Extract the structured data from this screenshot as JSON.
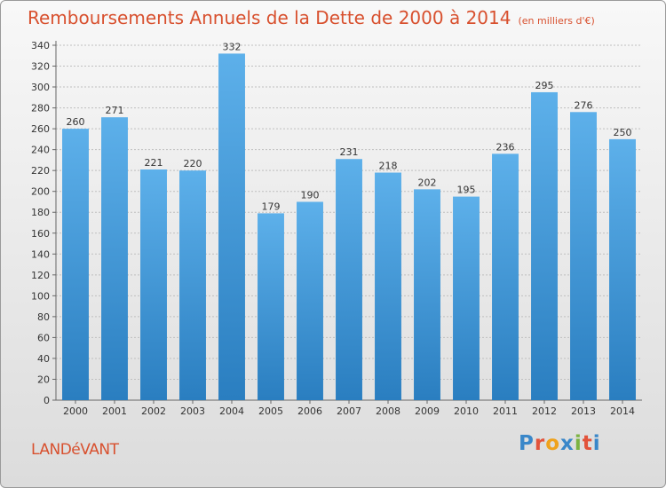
{
  "header": {
    "title": "Remboursements Annuels de la Dette de 2000 à 2014",
    "subtitle": "(en milliers d'€)"
  },
  "footer": {
    "place": "LANDéVANT",
    "logo_letters": [
      "P",
      "r",
      "o",
      "x",
      "i",
      "t",
      "i"
    ]
  },
  "colors": {
    "title": "#d8502e",
    "bar_top": "#5db0ea",
    "bar_bottom": "#2a7ec0",
    "logo": [
      "#3a87c9",
      "#e2533b",
      "#efa21c",
      "#3a87c9",
      "#7cb342",
      "#e2533b",
      "#3a87c9"
    ]
  },
  "chart_data": {
    "type": "bar",
    "title": "Remboursements Annuels de la Dette de 2000 à 2014",
    "subtitle": "(en milliers d'€)",
    "categories": [
      "2000",
      "2001",
      "2002",
      "2003",
      "2004",
      "2005",
      "2006",
      "2007",
      "2008",
      "2009",
      "2010",
      "2011",
      "2012",
      "2013",
      "2014"
    ],
    "values": [
      260,
      271,
      221,
      220,
      332,
      179,
      190,
      231,
      218,
      202,
      195,
      236,
      295,
      276,
      250
    ],
    "ylim": [
      0,
      340
    ],
    "yticks": [
      0,
      20,
      40,
      60,
      80,
      100,
      120,
      140,
      160,
      180,
      200,
      220,
      240,
      260,
      280,
      300,
      320,
      340
    ],
    "xlabel": "",
    "ylabel": "",
    "grid": true
  }
}
